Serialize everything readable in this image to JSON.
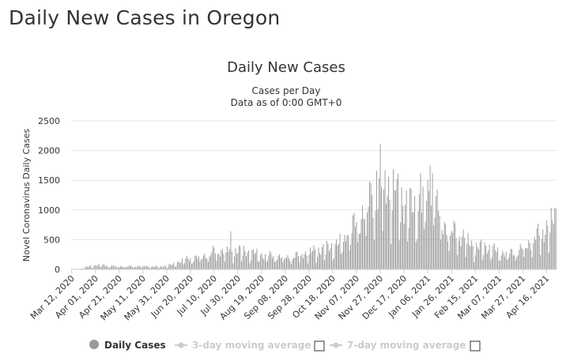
{
  "page": {
    "title": "Daily New Cases in Oregon"
  },
  "legend": {
    "items": [
      {
        "label": "Daily Cases",
        "color": "#999999",
        "active": true
      },
      {
        "label": "3-day moving average",
        "color": "#cccccc",
        "active": false
      },
      {
        "label": "7-day moving average",
        "color": "#cccccc",
        "active": false
      }
    ]
  },
  "chart_data": {
    "type": "bar",
    "title": "Daily New Cases",
    "subtitle_lines": [
      "Cases per Day",
      "Data as of 0:00 GMT+0"
    ],
    "xlabel": "",
    "ylabel": "Novel Coronavirus Daily Cases",
    "ylim": [
      0,
      2500
    ],
    "yticks": [
      0,
      500,
      1000,
      1500,
      2000,
      2500
    ],
    "grid": true,
    "legend_position": "bottom",
    "bar_color": "#999999",
    "x_start": "2020-03-12",
    "x_end": "2021-04-24",
    "xtick_labels": [
      "Mar 12, 2020",
      "Apr 01, 2020",
      "Apr 21, 2020",
      "May 11, 2020",
      "May 31, 2020",
      "Jun 20, 2020",
      "Jul 10, 2020",
      "Jul 30, 2020",
      "Aug 19, 2020",
      "Sep 08, 2020",
      "Sep 28, 2020",
      "Oct 18, 2020",
      "Nov 07, 2020",
      "Nov 27, 2020",
      "Dec 17, 2020",
      "Jan 06, 2021",
      "Jan 26, 2021",
      "Feb 15, 2021",
      "Mar 07, 2021",
      "Mar 27, 2021",
      "Apr 16, 2021"
    ],
    "series": [
      {
        "name": "Daily Cases",
        "anchors": [
          [
            "2020-03-12",
            2
          ],
          [
            "2020-03-20",
            12
          ],
          [
            "2020-03-28",
            60
          ],
          [
            "2020-04-05",
            75
          ],
          [
            "2020-04-15",
            55
          ],
          [
            "2020-04-25",
            50
          ],
          [
            "2020-05-10",
            55
          ],
          [
            "2020-05-25",
            45
          ],
          [
            "2020-06-05",
            80
          ],
          [
            "2020-06-12",
            150
          ],
          [
            "2020-06-20",
            190
          ],
          [
            "2020-06-30",
            220
          ],
          [
            "2020-07-10",
            310
          ],
          [
            "2020-07-20",
            320
          ],
          [
            "2020-07-30",
            330
          ],
          [
            "2020-08-10",
            290
          ],
          [
            "2020-08-20",
            240
          ],
          [
            "2020-09-01",
            230
          ],
          [
            "2020-09-10",
            200
          ],
          [
            "2020-09-20",
            250
          ],
          [
            "2020-10-01",
            310
          ],
          [
            "2020-10-10",
            350
          ],
          [
            "2020-10-18",
            400
          ],
          [
            "2020-10-28",
            500
          ],
          [
            "2020-11-07",
            820
          ],
          [
            "2020-11-15",
            1050
          ],
          [
            "2020-11-22",
            1250
          ],
          [
            "2020-11-30",
            1500
          ],
          [
            "2020-12-05",
            1350
          ],
          [
            "2020-12-10",
            1400
          ],
          [
            "2020-12-17",
            1150
          ],
          [
            "2020-12-25",
            1050
          ],
          [
            "2021-01-02",
            1150
          ],
          [
            "2021-01-08",
            1300
          ],
          [
            "2021-01-15",
            1000
          ],
          [
            "2021-01-22",
            650
          ],
          [
            "2021-01-30",
            650
          ],
          [
            "2021-02-08",
            500
          ],
          [
            "2021-02-15",
            380
          ],
          [
            "2021-02-25",
            390
          ],
          [
            "2021-03-07",
            300
          ],
          [
            "2021-03-15",
            270
          ],
          [
            "2021-03-25",
            340
          ],
          [
            "2021-04-03",
            480
          ],
          [
            "2021-04-12",
            650
          ],
          [
            "2021-04-20",
            780
          ],
          [
            "2021-04-24",
            950
          ]
        ],
        "spikes": [
          [
            "2020-07-24",
            640
          ],
          [
            "2020-10-30",
            580
          ],
          [
            "2020-11-18",
            1480
          ],
          [
            "2020-11-24",
            1660
          ],
          [
            "2020-11-27",
            2110
          ],
          [
            "2020-12-04",
            1560
          ],
          [
            "2020-12-11",
            1520
          ],
          [
            "2020-12-31",
            1620
          ],
          [
            "2021-01-08",
            1750
          ],
          [
            "2021-01-10",
            1620
          ],
          [
            "2021-01-20",
            800
          ]
        ]
      }
    ]
  }
}
